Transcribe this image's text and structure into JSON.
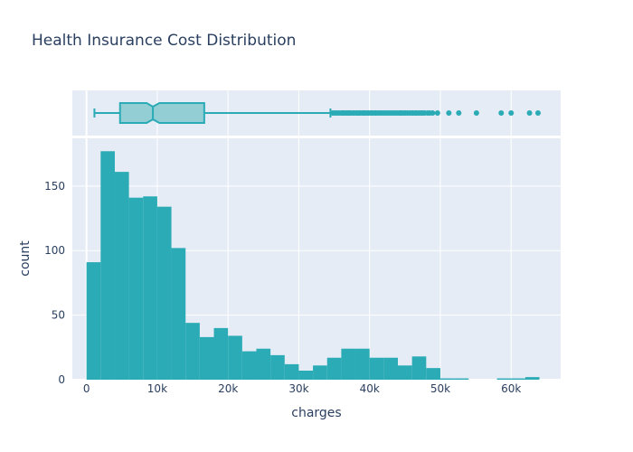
{
  "chart_data": {
    "type": "histogram",
    "title": "Health Insurance Cost Distribution",
    "xlabel": "charges",
    "ylabel": "count",
    "xlim": [
      -2000,
      67000
    ],
    "ylim": [
      0,
      187
    ],
    "x_ticks": [
      0,
      10000,
      20000,
      30000,
      40000,
      50000,
      60000
    ],
    "x_tick_labels": [
      "0",
      "10k",
      "20k",
      "30k",
      "40k",
      "50k",
      "60k"
    ],
    "y_ticks": [
      0,
      50,
      100,
      150
    ],
    "y_tick_labels": [
      "0",
      "50",
      "100",
      "150"
    ],
    "bin_width": 2000,
    "bins": [
      {
        "x0": 0,
        "count": 91
      },
      {
        "x0": 2000,
        "count": 177
      },
      {
        "x0": 4000,
        "count": 161
      },
      {
        "x0": 6000,
        "count": 141
      },
      {
        "x0": 8000,
        "count": 142
      },
      {
        "x0": 10000,
        "count": 134
      },
      {
        "x0": 12000,
        "count": 102
      },
      {
        "x0": 14000,
        "count": 44
      },
      {
        "x0": 16000,
        "count": 33
      },
      {
        "x0": 18000,
        "count": 40
      },
      {
        "x0": 20000,
        "count": 34
      },
      {
        "x0": 22000,
        "count": 22
      },
      {
        "x0": 24000,
        "count": 24
      },
      {
        "x0": 26000,
        "count": 19
      },
      {
        "x0": 28000,
        "count": 12
      },
      {
        "x0": 30000,
        "count": 7
      },
      {
        "x0": 32000,
        "count": 11
      },
      {
        "x0": 34000,
        "count": 17
      },
      {
        "x0": 36000,
        "count": 24
      },
      {
        "x0": 38000,
        "count": 24
      },
      {
        "x0": 40000,
        "count": 17
      },
      {
        "x0": 42000,
        "count": 17
      },
      {
        "x0": 44000,
        "count": 11
      },
      {
        "x0": 46000,
        "count": 18
      },
      {
        "x0": 48000,
        "count": 9
      },
      {
        "x0": 50000,
        "count": 1
      },
      {
        "x0": 52000,
        "count": 1
      },
      {
        "x0": 54000,
        "count": 0
      },
      {
        "x0": 56000,
        "count": 0
      },
      {
        "x0": 58000,
        "count": 1
      },
      {
        "x0": 60000,
        "count": 1
      },
      {
        "x0": 62000,
        "count": 2
      }
    ],
    "boxplot": {
      "min": 1122,
      "q1": 4740,
      "median": 9382,
      "q3": 16640,
      "upper_fence": 34472,
      "notch_low": 8500,
      "notch_high": 10300,
      "outliers": [
        34800,
        35100,
        35400,
        35700,
        36000,
        36200,
        36400,
        36700,
        36900,
        37100,
        37300,
        37600,
        37800,
        38100,
        38300,
        38500,
        38700,
        39000,
        39200,
        39400,
        39700,
        39900,
        40200,
        40400,
        40700,
        40900,
        41200,
        41500,
        41800,
        42100,
        42400,
        42700,
        43000,
        43300,
        43600,
        43900,
        44200,
        44400,
        44600,
        44900,
        45100,
        45400,
        45700,
        46000,
        46200,
        46500,
        46700,
        47000,
        47300,
        47500,
        47800,
        48200,
        48500,
        48900,
        49600,
        51200,
        52600,
        55100,
        58600,
        60000,
        62600,
        63800
      ]
    },
    "grid": true,
    "colors": {
      "bar": "#2aabb5",
      "box_fill": "#93ced5",
      "box_line": "#2aabb5",
      "plot_bg": "#e5ecf6",
      "grid": "#ffffff",
      "text": "#2a3f5f"
    }
  }
}
